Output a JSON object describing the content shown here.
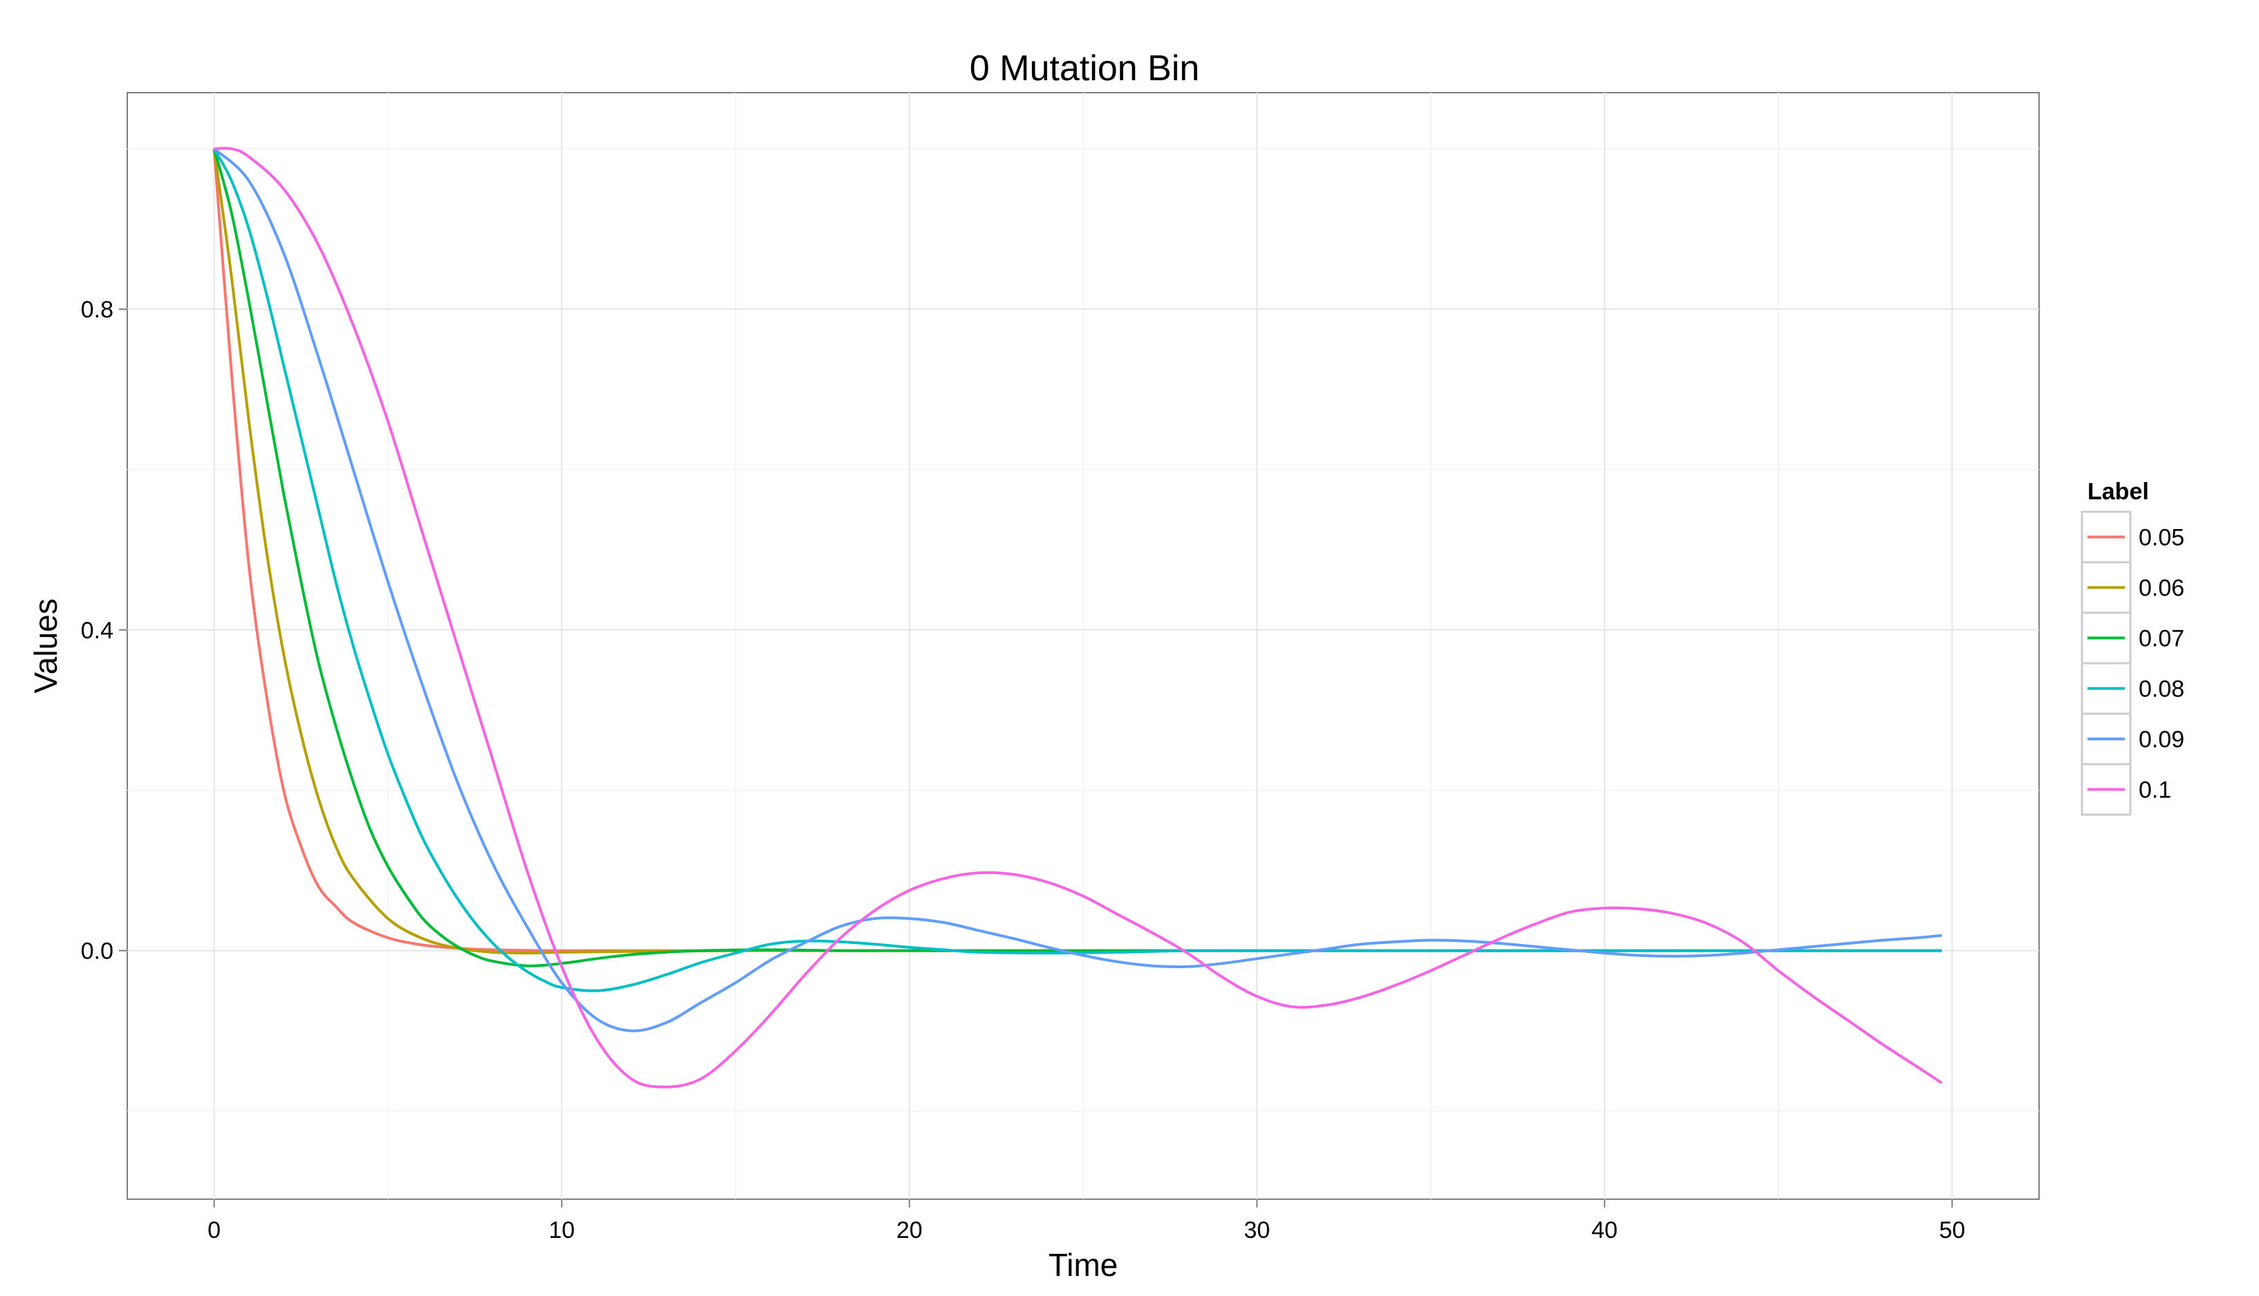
{
  "chart_data": {
    "type": "line",
    "title": "0 Mutation Bin",
    "xlabel": "Time",
    "ylabel": "Values",
    "xlim": [
      -2.5,
      52.5
    ],
    "ylim": [
      -0.31,
      1.07
    ],
    "x_ticks": [
      0,
      10,
      20,
      30,
      40,
      50
    ],
    "x_tick_labels": [
      "0",
      "10",
      "20",
      "30",
      "40",
      "50"
    ],
    "y_ticks": [
      0.0,
      0.4,
      0.8
    ],
    "y_tick_labels": [
      "0.0",
      "0.4",
      "0.8"
    ],
    "grid": true,
    "legend": {
      "title": "Label",
      "placement": "right"
    },
    "series": [
      {
        "name": "0.05",
        "color": "#F8766D",
        "points": [
          [
            0,
            1.0
          ],
          [
            0.5,
            0.72
          ],
          [
            1,
            0.48
          ],
          [
            1.5,
            0.32
          ],
          [
            2,
            0.2
          ],
          [
            2.5,
            0.13
          ],
          [
            3,
            0.08
          ],
          [
            3.5,
            0.055
          ],
          [
            4,
            0.035
          ],
          [
            5,
            0.016
          ],
          [
            6,
            0.007
          ],
          [
            7,
            0.003
          ],
          [
            8,
            0.001
          ],
          [
            10,
            0.0
          ],
          [
            15,
            0.0
          ],
          [
            20,
            0.0
          ],
          [
            30,
            0.0
          ],
          [
            40,
            0.0
          ],
          [
            49.7,
            0.0
          ]
        ]
      },
      {
        "name": "0.06",
        "color": "#B79F00",
        "points": [
          [
            0,
            1.0
          ],
          [
            0.5,
            0.84
          ],
          [
            1,
            0.66
          ],
          [
            1.5,
            0.5
          ],
          [
            2,
            0.37
          ],
          [
            2.5,
            0.27
          ],
          [
            3,
            0.19
          ],
          [
            3.5,
            0.13
          ],
          [
            4,
            0.09
          ],
          [
            5,
            0.04
          ],
          [
            6,
            0.015
          ],
          [
            7,
            0.003
          ],
          [
            8,
            -0.002
          ],
          [
            9,
            -0.003
          ],
          [
            10,
            -0.002
          ],
          [
            12,
            -0.001
          ],
          [
            15,
            0.0
          ],
          [
            20,
            0.0
          ],
          [
            30,
            0.0
          ],
          [
            40,
            0.0
          ],
          [
            49.7,
            0.0
          ]
        ]
      },
      {
        "name": "0.07",
        "color": "#00BA38",
        "points": [
          [
            0,
            1.0
          ],
          [
            0.5,
            0.92
          ],
          [
            1,
            0.81
          ],
          [
            1.5,
            0.69
          ],
          [
            2,
            0.57
          ],
          [
            2.5,
            0.46
          ],
          [
            3,
            0.36
          ],
          [
            3.5,
            0.28
          ],
          [
            4,
            0.21
          ],
          [
            4.5,
            0.15
          ],
          [
            5,
            0.105
          ],
          [
            5.5,
            0.07
          ],
          [
            6,
            0.04
          ],
          [
            6.5,
            0.02
          ],
          [
            7,
            0.005
          ],
          [
            7.5,
            -0.006
          ],
          [
            8,
            -0.013
          ],
          [
            9,
            -0.019
          ],
          [
            10,
            -0.016
          ],
          [
            11,
            -0.01
          ],
          [
            12,
            -0.005
          ],
          [
            13,
            -0.002
          ],
          [
            14,
            0.0
          ],
          [
            16,
            0.001
          ],
          [
            18,
            0.0
          ],
          [
            20,
            0.0
          ],
          [
            30,
            0.0
          ],
          [
            40,
            0.0
          ],
          [
            49.7,
            0.0
          ]
        ]
      },
      {
        "name": "0.08",
        "color": "#00BFC4",
        "points": [
          [
            0,
            1.0
          ],
          [
            0.5,
            0.96
          ],
          [
            1,
            0.9
          ],
          [
            1.5,
            0.82
          ],
          [
            2,
            0.73
          ],
          [
            2.5,
            0.64
          ],
          [
            3,
            0.55
          ],
          [
            3.5,
            0.46
          ],
          [
            4,
            0.38
          ],
          [
            4.5,
            0.31
          ],
          [
            5,
            0.245
          ],
          [
            5.5,
            0.19
          ],
          [
            6,
            0.14
          ],
          [
            6.5,
            0.1
          ],
          [
            7,
            0.065
          ],
          [
            7.5,
            0.035
          ],
          [
            8,
            0.01
          ],
          [
            8.5,
            -0.01
          ],
          [
            9,
            -0.026
          ],
          [
            9.5,
            -0.038
          ],
          [
            10,
            -0.046
          ],
          [
            11,
            -0.05
          ],
          [
            12,
            -0.043
          ],
          [
            13,
            -0.03
          ],
          [
            14,
            -0.015
          ],
          [
            15,
            -0.003
          ],
          [
            16,
            0.008
          ],
          [
            17,
            0.012
          ],
          [
            18,
            0.011
          ],
          [
            19,
            0.008
          ],
          [
            20,
            0.004
          ],
          [
            21,
            0.001
          ],
          [
            22,
            -0.002
          ],
          [
            24,
            -0.003
          ],
          [
            26,
            -0.002
          ],
          [
            28,
            0.0
          ],
          [
            30,
            0.0
          ],
          [
            35,
            0.0
          ],
          [
            40,
            0.0
          ],
          [
            49.7,
            0.0
          ]
        ]
      },
      {
        "name": "0.09",
        "color": "#619CFF",
        "points": [
          [
            0,
            1.0
          ],
          [
            1,
            0.96
          ],
          [
            2,
            0.87
          ],
          [
            3,
            0.74
          ],
          [
            4,
            0.6
          ],
          [
            5,
            0.46
          ],
          [
            6,
            0.33
          ],
          [
            7,
            0.21
          ],
          [
            8,
            0.11
          ],
          [
            9,
            0.03
          ],
          [
            10,
            -0.04
          ],
          [
            11,
            -0.085
          ],
          [
            12,
            -0.1
          ],
          [
            13,
            -0.09
          ],
          [
            14,
            -0.065
          ],
          [
            15,
            -0.04
          ],
          [
            16,
            -0.012
          ],
          [
            17,
            0.01
          ],
          [
            18,
            0.03
          ],
          [
            19,
            0.04
          ],
          [
            20,
            0.04
          ],
          [
            21,
            0.035
          ],
          [
            22,
            0.025
          ],
          [
            23,
            0.015
          ],
          [
            24,
            0.004
          ],
          [
            25,
            -0.006
          ],
          [
            26,
            -0.014
          ],
          [
            27,
            -0.019
          ],
          [
            28,
            -0.02
          ],
          [
            29,
            -0.016
          ],
          [
            30,
            -0.01
          ],
          [
            31,
            -0.004
          ],
          [
            32,
            0.002
          ],
          [
            33,
            0.008
          ],
          [
            34,
            0.011
          ],
          [
            35,
            0.013
          ],
          [
            36,
            0.012
          ],
          [
            37,
            0.009
          ],
          [
            38,
            0.005
          ],
          [
            39,
            0.001
          ],
          [
            40,
            -0.003
          ],
          [
            41,
            -0.006
          ],
          [
            42,
            -0.007
          ],
          [
            43,
            -0.006
          ],
          [
            44,
            -0.003
          ],
          [
            45,
            0.001
          ],
          [
            46,
            0.005
          ],
          [
            47,
            0.009
          ],
          [
            48,
            0.013
          ],
          [
            49,
            0.016
          ],
          [
            49.7,
            0.019
          ]
        ]
      },
      {
        "name": "0.1",
        "color": "#F564E3",
        "points": [
          [
            0,
            1.0
          ],
          [
            0.5,
            1.0
          ],
          [
            1,
            0.99
          ],
          [
            2,
            0.95
          ],
          [
            3,
            0.88
          ],
          [
            4,
            0.78
          ],
          [
            5,
            0.66
          ],
          [
            6,
            0.52
          ],
          [
            7,
            0.38
          ],
          [
            8,
            0.24
          ],
          [
            9,
            0.1
          ],
          [
            10,
            -0.02
          ],
          [
            11,
            -0.11
          ],
          [
            12,
            -0.16
          ],
          [
            13,
            -0.17
          ],
          [
            14,
            -0.16
          ],
          [
            15,
            -0.125
          ],
          [
            16,
            -0.08
          ],
          [
            17,
            -0.03
          ],
          [
            18,
            0.015
          ],
          [
            19,
            0.05
          ],
          [
            20,
            0.075
          ],
          [
            21,
            0.09
          ],
          [
            22,
            0.097
          ],
          [
            23,
            0.095
          ],
          [
            24,
            0.085
          ],
          [
            25,
            0.068
          ],
          [
            26,
            0.045
          ],
          [
            27,
            0.022
          ],
          [
            28,
            -0.003
          ],
          [
            29,
            -0.033
          ],
          [
            30,
            -0.057
          ],
          [
            31,
            -0.07
          ],
          [
            32,
            -0.068
          ],
          [
            33,
            -0.058
          ],
          [
            34,
            -0.043
          ],
          [
            35,
            -0.025
          ],
          [
            36,
            -0.005
          ],
          [
            37,
            0.015
          ],
          [
            38,
            0.033
          ],
          [
            39,
            0.048
          ],
          [
            40,
            0.053
          ],
          [
            41,
            0.052
          ],
          [
            42,
            0.046
          ],
          [
            43,
            0.033
          ],
          [
            44,
            0.01
          ],
          [
            45,
            -0.025
          ],
          [
            46,
            -0.057
          ],
          [
            47,
            -0.087
          ],
          [
            48,
            -0.117
          ],
          [
            49,
            -0.145
          ],
          [
            49.7,
            -0.165
          ]
        ]
      }
    ]
  }
}
